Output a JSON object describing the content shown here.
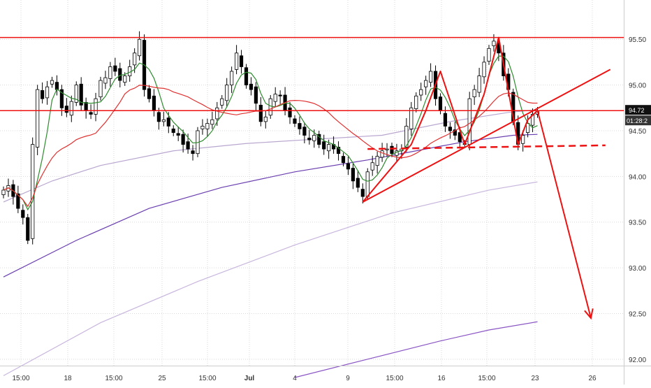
{
  "colors": {
    "background": "#ffffff",
    "grid": "#d9d9d9",
    "candle_up": "#ffffff",
    "candle_down": "#000000",
    "candle_outline": "#000000",
    "ma_fast": "#2e8b2e",
    "ma_mid": "#e03030",
    "ma_slow_1": "#b8a6cf",
    "ma_slow_2": "#6a3fb0",
    "ma_slow_3": "#c8b6de",
    "ma_slow_4": "#8a55c4",
    "drawing_red": "#ee1111",
    "price_tag_bg": "#111111",
    "price_tag_text": "#ffffff"
  },
  "chart_data": {
    "type": "candlestick",
    "title": "",
    "xlabel": "",
    "ylabel": "",
    "ylim": [
      91.93,
      95.93
    ],
    "y_ticks": [
      92.0,
      92.5,
      93.0,
      93.5,
      94.0,
      94.5,
      95.0,
      95.5
    ],
    "y_tick_labels": [
      "92.00",
      "92.50",
      "93.00",
      "93.50",
      "94.00",
      "94.50",
      "95.00",
      "95.50"
    ],
    "x_tick_labels": [
      "15:00",
      "18",
      "15:00",
      "25",
      "15:00",
      "Jul",
      "4",
      "9",
      "15:00",
      "16",
      "15:00",
      "23",
      "26"
    ],
    "x_tick_bold": [
      false,
      false,
      false,
      false,
      false,
      true,
      false,
      false,
      false,
      false,
      false,
      false,
      false
    ],
    "grid": true,
    "last_price_label": "94.72",
    "countdown_label": "01:28:2",
    "close_series": [
      93.85,
      93.9,
      93.78,
      93.65,
      93.55,
      93.3,
      94.35,
      94.95,
      94.85,
      94.98,
      95.05,
      94.95,
      94.75,
      94.7,
      94.82,
      95.0,
      94.78,
      94.72,
      94.68,
      94.85,
      95.05,
      95.08,
      95.2,
      95.15,
      95.05,
      95.1,
      95.2,
      95.35,
      95.5,
      94.95,
      94.85,
      94.72,
      94.6,
      94.62,
      94.55,
      94.48,
      94.45,
      94.35,
      94.3,
      94.25,
      94.5,
      94.55,
      94.58,
      94.62,
      94.75,
      94.85,
      95.0,
      95.15,
      95.35,
      95.2,
      95.0,
      94.95,
      94.8,
      94.6,
      94.65,
      94.85,
      94.9,
      94.88,
      94.72,
      94.65,
      94.58,
      94.52,
      94.45,
      94.4,
      94.45,
      94.35,
      94.3,
      94.35,
      94.3,
      94.25,
      94.15,
      94.08,
      93.95,
      93.88,
      93.78,
      94.05,
      94.15,
      94.22,
      94.28,
      94.3,
      94.25,
      94.28,
      94.3,
      94.55,
      94.75,
      94.88,
      94.95,
      95.05,
      95.15,
      94.85,
      94.72,
      94.55,
      94.5,
      94.45,
      94.38,
      94.35,
      94.85,
      94.95,
      95.1,
      95.25,
      95.4,
      95.48,
      95.35,
      95.1,
      94.95,
      94.6,
      94.35,
      94.45,
      94.58,
      94.68,
      94.72
    ],
    "moving_averages": [
      {
        "color_key": "ma_fast",
        "period": 5
      },
      {
        "color_key": "ma_mid",
        "period": 20
      },
      {
        "color_key": "ma_slow_1",
        "points": [
          [
            0,
            93.72
          ],
          [
            10,
            93.95
          ],
          [
            20,
            94.12
          ],
          [
            35,
            94.28
          ],
          [
            50,
            94.36
          ],
          [
            62,
            94.4
          ],
          [
            78,
            94.45
          ],
          [
            92,
            94.6
          ],
          [
            104,
            94.7
          ],
          [
            110,
            94.73
          ]
        ]
      },
      {
        "color_key": "ma_slow_2",
        "points": [
          [
            0,
            92.9
          ],
          [
            15,
            93.3
          ],
          [
            30,
            93.65
          ],
          [
            45,
            93.88
          ],
          [
            60,
            94.05
          ],
          [
            75,
            94.18
          ],
          [
            85,
            94.28
          ],
          [
            95,
            94.38
          ],
          [
            105,
            94.45
          ],
          [
            110,
            94.46
          ]
        ]
      },
      {
        "color_key": "ma_slow_3",
        "points": [
          [
            0,
            91.82
          ],
          [
            20,
            92.4
          ],
          [
            40,
            92.85
          ],
          [
            60,
            93.25
          ],
          [
            80,
            93.6
          ],
          [
            100,
            93.85
          ],
          [
            110,
            93.94
          ]
        ]
      },
      {
        "color_key": "ma_slow_4",
        "points": [
          [
            60,
            91.8
          ],
          [
            75,
            92.0
          ],
          [
            90,
            92.2
          ],
          [
            100,
            92.32
          ],
          [
            110,
            92.41
          ]
        ]
      }
    ],
    "horizontal_lines": [
      95.52,
      94.72
    ],
    "pattern_line": [
      [
        74,
        93.72
      ],
      [
        84,
        94.35
      ],
      [
        87,
        94.72
      ],
      [
        90,
        95.15
      ],
      [
        95,
        94.35
      ],
      [
        99,
        94.9
      ],
      [
        102,
        95.52
      ],
      [
        106,
        94.35
      ],
      [
        108,
        94.62
      ],
      [
        110,
        94.72
      ],
      [
        121,
        92.45
      ]
    ],
    "neckline_dashed": [
      [
        75,
        94.3
      ],
      [
        124,
        94.34
      ]
    ],
    "trendline": [
      [
        74,
        93.72
      ],
      [
        125,
        95.17
      ]
    ]
  }
}
